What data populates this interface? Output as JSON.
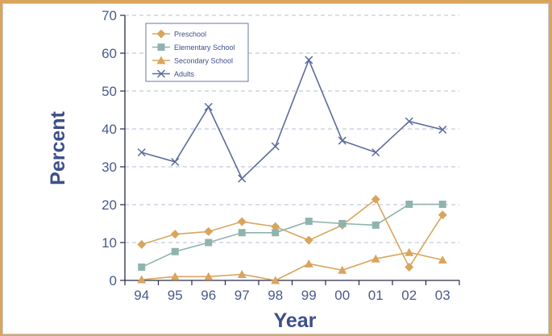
{
  "chart_data": {
    "type": "line",
    "xlabel": "Year",
    "ylabel": "Percent",
    "ylim": [
      0,
      70
    ],
    "yticks": [
      0,
      10,
      20,
      30,
      40,
      50,
      60,
      70
    ],
    "categories": [
      "94",
      "95",
      "96",
      "97",
      "98",
      "99",
      "00",
      "01",
      "02",
      "03"
    ],
    "grid": "horizontal dashed",
    "legend_position": "top-left",
    "series": [
      {
        "name": "Preschool",
        "marker": "diamond",
        "color": "#d9a55c",
        "values": [
          9.5,
          12.2,
          12.9,
          15.5,
          14.2,
          10.6,
          14.6,
          21.4,
          3.5,
          17.3
        ]
      },
      {
        "name": "Elementary School",
        "marker": "square",
        "color": "#8fb3ad",
        "values": [
          3.5,
          7.6,
          10.0,
          12.6,
          12.6,
          15.6,
          15.0,
          14.6,
          20.1,
          20.1
        ]
      },
      {
        "name": "Secondary School",
        "marker": "triangle",
        "color": "#d9a55c",
        "values": [
          0.2,
          1.0,
          1.0,
          1.6,
          0.0,
          4.4,
          2.7,
          5.7,
          7.4,
          5.4
        ]
      },
      {
        "name": "Adults",
        "marker": "x",
        "color": "#5d6c9b",
        "values": [
          33.8,
          31.3,
          45.8,
          26.9,
          35.4,
          58.2,
          36.9,
          33.8,
          42.0,
          39.8
        ]
      }
    ]
  }
}
